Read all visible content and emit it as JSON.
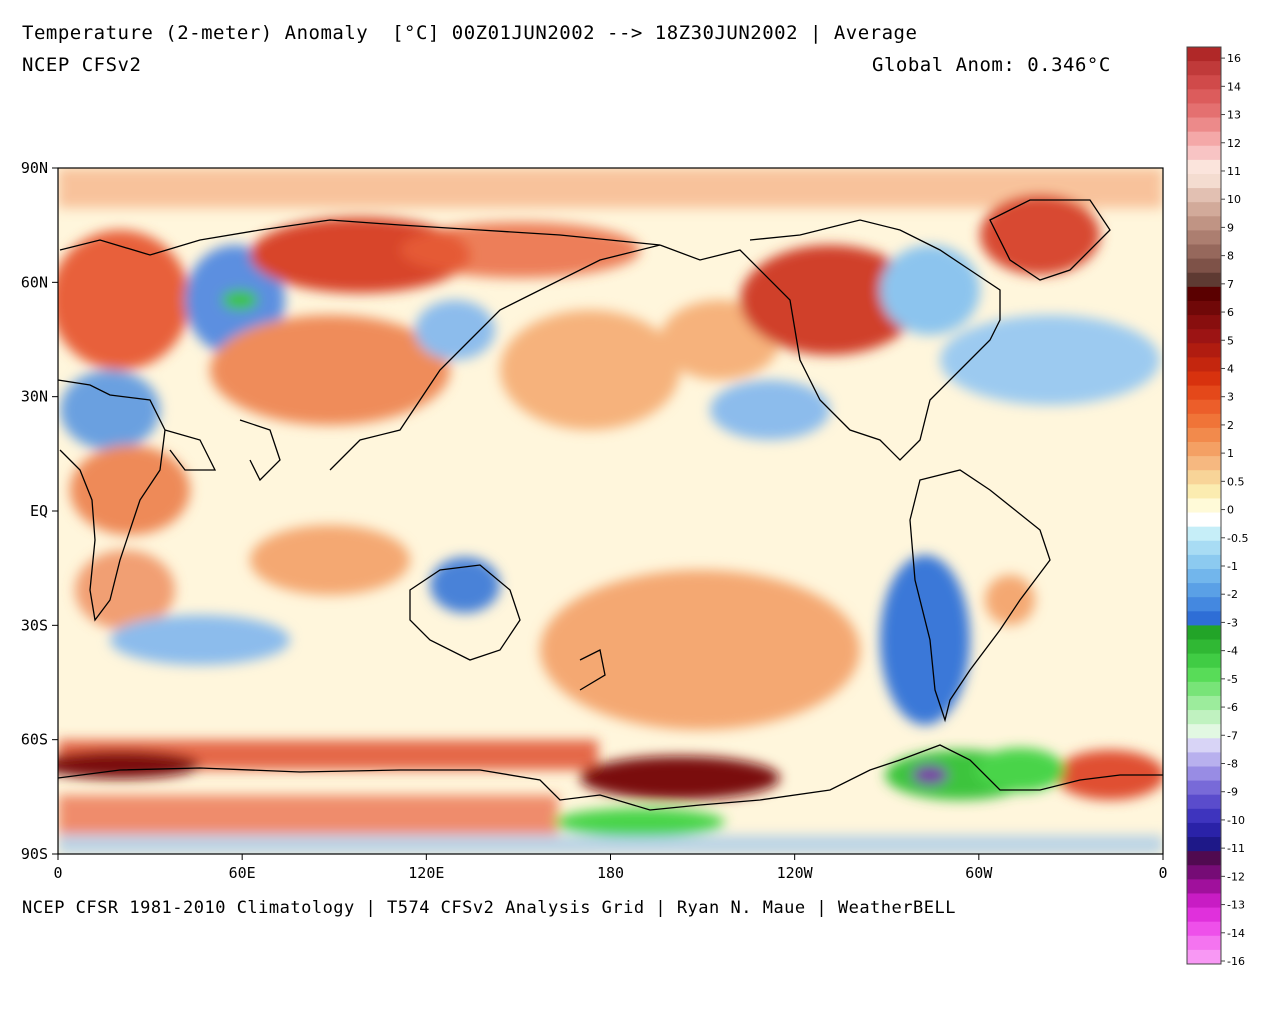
{
  "header": {
    "title": "Temperature (2-meter) Anomaly  [°C] 00Z01JUN2002 --> 18Z30JUN2002 | Average",
    "model": "NCEP CFSv2",
    "global_anom": "Global Anom: 0.346°C"
  },
  "footer": {
    "credit": "NCEP CFSR 1981-2010 Climatology | T574 CFSv2 Analysis Grid | Ryan N. Maue | WeatherBELL"
  },
  "map": {
    "lat_labels": [
      "90N",
      "60N",
      "30N",
      "EQ",
      "30S",
      "60S",
      "90S"
    ],
    "lon_labels": [
      "0",
      "60E",
      "120E",
      "180",
      "120W",
      "60W",
      "0"
    ],
    "regions": [
      {
        "name": "arctic-north-atlantic",
        "color": "#f4a070"
      },
      {
        "name": "europe-warm",
        "color": "#e8603a"
      },
      {
        "name": "russia-cold",
        "color": "#5b8fe0"
      },
      {
        "name": "russia-cold-core",
        "color": "#3cc43c"
      },
      {
        "name": "siberia-warm",
        "color": "#d8442a"
      },
      {
        "name": "central-asia-warm",
        "color": "#ef8c5a"
      },
      {
        "name": "north-pacific-warm",
        "color": "#f6b27c"
      },
      {
        "name": "north-pacific-cool",
        "color": "#8cbcec"
      },
      {
        "name": "north-america-warm",
        "color": "#d0402a"
      },
      {
        "name": "canada-east-cool",
        "color": "#8cc4ee"
      },
      {
        "name": "greenland-warm",
        "color": "#d84a30"
      },
      {
        "name": "north-atlantic-cool",
        "color": "#9ccaf0"
      },
      {
        "name": "africa-west-cool",
        "color": "#6aa0e0"
      },
      {
        "name": "africa-warm",
        "color": "#ee8a58"
      },
      {
        "name": "tropics-neutral",
        "color": "#fff6dc"
      },
      {
        "name": "australia-cool",
        "color": "#4a82d8"
      },
      {
        "name": "south-pacific-warm",
        "color": "#f4a872"
      },
      {
        "name": "south-america-cool",
        "color": "#3a78d8"
      },
      {
        "name": "southern-ocean-warm",
        "color": "#e05030"
      },
      {
        "name": "antarctic-ross-dark",
        "color": "#7a0e0a"
      },
      {
        "name": "antarctic-peninsula-cold",
        "color": "#3cc43c"
      },
      {
        "name": "weddell-purple",
        "color": "#7a3aa8"
      },
      {
        "name": "antarctic-east-cold",
        "color": "#4ad44a"
      }
    ]
  },
  "legend": {
    "items": [
      {
        "label": "16",
        "color": "#b02828"
      },
      {
        "label": "",
        "color": "#c03a3a"
      },
      {
        "label": "14",
        "color": "#d04a4a"
      },
      {
        "label": "",
        "color": "#dc5c5c"
      },
      {
        "label": "13",
        "color": "#e47070"
      },
      {
        "label": "",
        "color": "#ec8a8a"
      },
      {
        "label": "12",
        "color": "#f4a8a8"
      },
      {
        "label": "",
        "color": "#f8c4c4"
      },
      {
        "label": "11",
        "color": "#fbe4dc"
      },
      {
        "label": "",
        "color": "#f4dcd0"
      },
      {
        "label": "10",
        "color": "#e2c0b2"
      },
      {
        "label": "",
        "color": "#d2aa9a"
      },
      {
        "label": "9",
        "color": "#c09484"
      },
      {
        "label": "",
        "color": "#ac7e70"
      },
      {
        "label": "8",
        "color": "#96685c"
      },
      {
        "label": "",
        "color": "#7e5248"
      },
      {
        "label": "7",
        "color": "#5e3a32"
      },
      {
        "label": "",
        "color": "#5a0000"
      },
      {
        "label": "6",
        "color": "#700808"
      },
      {
        "label": "",
        "color": "#880e0e"
      },
      {
        "label": "5",
        "color": "#9c1414"
      },
      {
        "label": "",
        "color": "#b01c10"
      },
      {
        "label": "4",
        "color": "#c4260e"
      },
      {
        "label": "",
        "color": "#d8320e"
      },
      {
        "label": "3",
        "color": "#e4481a"
      },
      {
        "label": "",
        "color": "#ec5e2a"
      },
      {
        "label": "2",
        "color": "#f07438"
      },
      {
        "label": "",
        "color": "#f28a4c"
      },
      {
        "label": "1",
        "color": "#f4a064"
      },
      {
        "label": "",
        "color": "#f6b880"
      },
      {
        "label": "0.5",
        "color": "#f8d498"
      },
      {
        "label": "",
        "color": "#fbecb0"
      },
      {
        "label": "0",
        "color": "#fffad8"
      },
      {
        "label": "",
        "color": "#ffffff"
      },
      {
        "label": "-0.5",
        "color": "#c6eef8"
      },
      {
        "label": "",
        "color": "#a8dcf4"
      },
      {
        "label": "-1",
        "color": "#8ccaf0"
      },
      {
        "label": "",
        "color": "#72b6ec"
      },
      {
        "label": "-2",
        "color": "#5aa0e6"
      },
      {
        "label": "",
        "color": "#4488e0"
      },
      {
        "label": "-3",
        "color": "#2e6ed6"
      },
      {
        "label": "",
        "color": "#22a428"
      },
      {
        "label": "-4",
        "color": "#30b834"
      },
      {
        "label": "",
        "color": "#40cc44"
      },
      {
        "label": "-5",
        "color": "#58dc58"
      },
      {
        "label": "",
        "color": "#78e478"
      },
      {
        "label": "-6",
        "color": "#9cec9c"
      },
      {
        "label": "",
        "color": "#c0f2c0"
      },
      {
        "label": "-7",
        "color": "#e2f8e2"
      },
      {
        "label": "",
        "color": "#d8d4f6"
      },
      {
        "label": "-8",
        "color": "#b8b0ee"
      },
      {
        "label": "",
        "color": "#988ce4"
      },
      {
        "label": "-9",
        "color": "#786ad8"
      },
      {
        "label": "",
        "color": "#5a4ccc"
      },
      {
        "label": "-10",
        "color": "#3e34be"
      },
      {
        "label": "",
        "color": "#2a22a8"
      },
      {
        "label": "-11",
        "color": "#1e1888"
      },
      {
        "label": "",
        "color": "#500a50"
      },
      {
        "label": "-12",
        "color": "#760c76"
      },
      {
        "label": "",
        "color": "#a0109c"
      },
      {
        "label": "-13",
        "color": "#c81cc4"
      },
      {
        "label": "",
        "color": "#e030dc"
      },
      {
        "label": "-14",
        "color": "#ee50ea"
      },
      {
        "label": "",
        "color": "#f474f0"
      },
      {
        "label": "-16",
        "color": "#f898f4"
      }
    ]
  }
}
